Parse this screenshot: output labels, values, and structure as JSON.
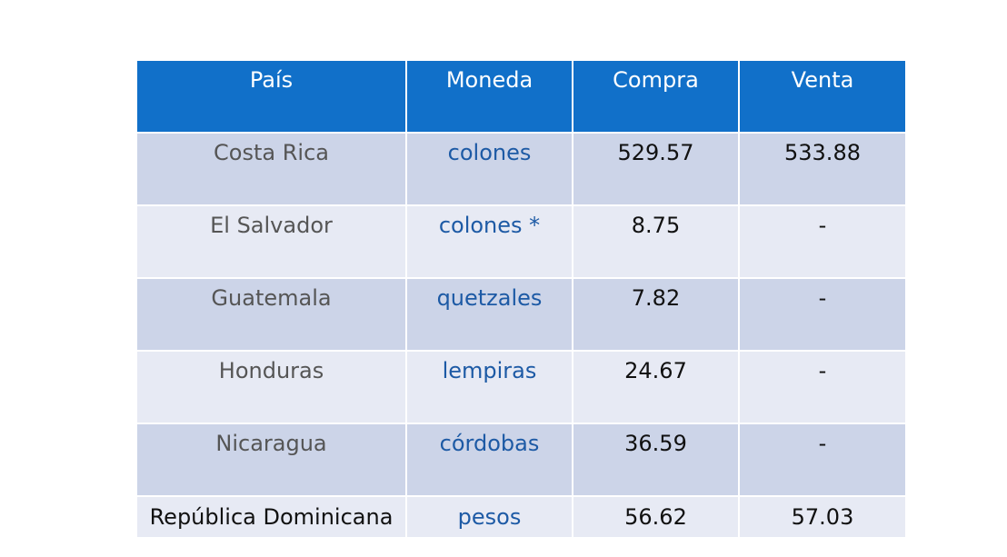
{
  "table": {
    "headers": [
      "País",
      "Moneda",
      "Compra",
      "Venta"
    ],
    "rows": [
      {
        "pais": "Costa Rica",
        "moneda": "colones",
        "compra": "529.57",
        "venta": "533.88"
      },
      {
        "pais": "El Salvador",
        "moneda": "colones *",
        "compra": "8.75",
        "venta": "-"
      },
      {
        "pais": "Guatemala",
        "moneda": "quetzales",
        "compra": "7.82",
        "venta": "-"
      },
      {
        "pais": "Honduras",
        "moneda": "lempiras",
        "compra": "24.67",
        "venta": "-"
      },
      {
        "pais": "Nicaragua",
        "moneda": "córdobas",
        "compra": "36.59",
        "venta": "-"
      },
      {
        "pais": "República Dominicana",
        "moneda": "pesos",
        "compra": "56.62",
        "venta": "57.03"
      }
    ]
  },
  "colors": {
    "header_bg": "#1170c9",
    "row_dark": "#ccd4e8",
    "row_light": "#e7eaf4",
    "currency_text": "#1d5aa5"
  }
}
